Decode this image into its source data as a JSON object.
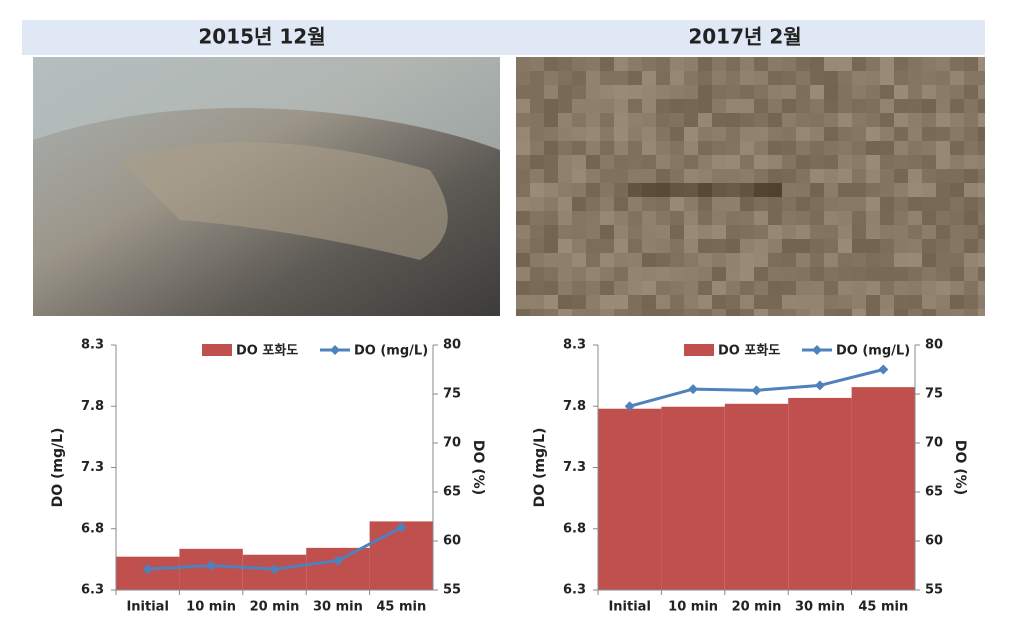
{
  "header": {
    "titles": [
      "2015년 12월",
      "2017년 2월"
    ]
  },
  "chart_data": [
    {
      "type": "combo",
      "categories": [
        "Initial",
        "10 min",
        "20 min",
        "30 min",
        "45 min"
      ],
      "series": [
        {
          "name": "DO 포화도",
          "type": "bar",
          "axis": "y2",
          "color": "#c0504d",
          "values": [
            58.4,
            59.2,
            58.6,
            59.3,
            62.0
          ]
        },
        {
          "name": "DO (mg/L)",
          "type": "line",
          "color": "#4f81bd",
          "values": [
            6.47,
            6.5,
            6.47,
            6.54,
            6.81
          ]
        }
      ],
      "y_label": "DO (mg/L)",
      "y2_label": "DO (%)",
      "ylim": [
        6.3,
        8.3
      ],
      "yticks": [
        6.3,
        6.8,
        7.3,
        7.8,
        8.3
      ],
      "y2lim": [
        55,
        80
      ],
      "y2ticks": [
        55,
        60,
        65,
        70,
        75,
        80
      ]
    },
    {
      "type": "combo",
      "categories": [
        "Initial",
        "10 min",
        "20 min",
        "30 min",
        "45 min"
      ],
      "series": [
        {
          "name": "DO 포화도",
          "type": "bar",
          "axis": "y2",
          "color": "#c0504d",
          "values": [
            73.5,
            73.7,
            74.0,
            74.6,
            75.7
          ]
        },
        {
          "name": "DO (mg/L)",
          "type": "line",
          "color": "#4f81bd",
          "values": [
            7.8,
            7.94,
            7.93,
            7.97,
            8.1
          ]
        }
      ],
      "y_label": "DO (mg/L)",
      "y2_label": "DO (%)",
      "ylim": [
        6.3,
        8.3
      ],
      "yticks": [
        6.3,
        6.8,
        7.3,
        7.8,
        8.3
      ],
      "y2lim": [
        55,
        80
      ],
      "y2ticks": [
        55,
        60,
        65,
        70,
        75,
        80
      ]
    }
  ]
}
